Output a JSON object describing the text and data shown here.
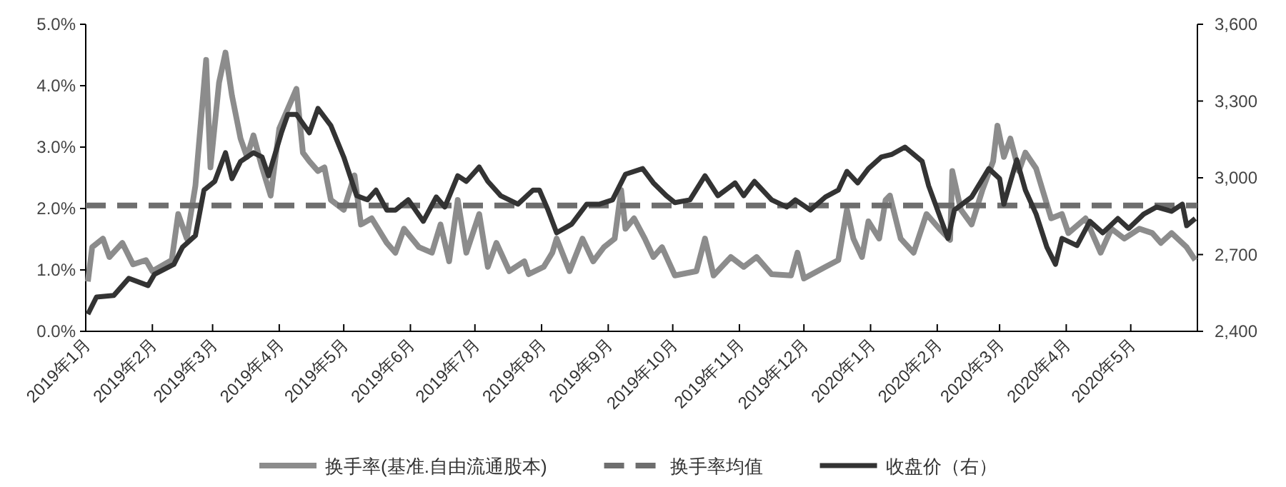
{
  "chart_data": {
    "type": "line",
    "xlim": [
      "2019-01-01",
      "2020-06-01"
    ],
    "xticks": [
      {
        "value": "2019-01",
        "label": "2019年1月"
      },
      {
        "value": "2019-02",
        "label": "2019年2月"
      },
      {
        "value": "2019-03",
        "label": "2019年3月"
      },
      {
        "value": "2019-04",
        "label": "2019年4月"
      },
      {
        "value": "2019-05",
        "label": "2019年5月"
      },
      {
        "value": "2019-06",
        "label": "2019年6月"
      },
      {
        "value": "2019-07",
        "label": "2019年7月"
      },
      {
        "value": "2019-08",
        "label": "2019年8月"
      },
      {
        "value": "2019-09",
        "label": "2019年9月"
      },
      {
        "value": "2019-10",
        "label": "2019年10月"
      },
      {
        "value": "2019-11",
        "label": "2019年11月"
      },
      {
        "value": "2019-12",
        "label": "2019年12月"
      },
      {
        "value": "2020-01",
        "label": "2020年1月"
      },
      {
        "value": "2020-02",
        "label": "2020年2月"
      },
      {
        "value": "2020-03",
        "label": "2020年3月"
      },
      {
        "value": "2020-04",
        "label": "2020年4月"
      },
      {
        "value": "2020-05",
        "label": "2020年5月"
      }
    ],
    "ylim": [
      0,
      5
    ],
    "yticks": [
      {
        "value": 0,
        "label": "0.0%"
      },
      {
        "value": 1,
        "label": "1.0%"
      },
      {
        "value": 2,
        "label": "2.0%"
      },
      {
        "value": 3,
        "label": "3.0%"
      },
      {
        "value": 4,
        "label": "4.0%"
      },
      {
        "value": 5,
        "label": "5.0%"
      }
    ],
    "y2lim": [
      2400,
      3600
    ],
    "y2ticks": [
      {
        "value": 2400,
        "label": "2,400"
      },
      {
        "value": 2700,
        "label": "2,700"
      },
      {
        "value": 3000,
        "label": "3,000"
      },
      {
        "value": 3300,
        "label": "3,300"
      },
      {
        "value": 3600,
        "label": "3,600"
      }
    ],
    "grid": false,
    "legend": "bottom",
    "series": [
      {
        "name": "换手率(基准.自由流通股本)",
        "color": "#8c8c8c",
        "line_style": "solid",
        "x": [
          "2019-01-02",
          "2019-01-04",
          "2019-01-09",
          "2019-01-12",
          "2019-01-18",
          "2019-01-23",
          "2019-01-29",
          "2019-02-01",
          "2019-02-10",
          "2019-02-13",
          "2019-02-17",
          "2019-02-21",
          "2019-02-26",
          "2019-02-28",
          "2019-03-04",
          "2019-03-07",
          "2019-03-10",
          "2019-03-14",
          "2019-03-17",
          "2019-03-20",
          "2019-03-24",
          "2019-03-28",
          "2019-04-01",
          "2019-04-09",
          "2019-04-12",
          "2019-04-15",
          "2019-04-19",
          "2019-04-22",
          "2019-04-25",
          "2019-05-01",
          "2019-05-06",
          "2019-05-09",
          "2019-05-14",
          "2019-05-21",
          "2019-05-25",
          "2019-05-29",
          "2019-06-05",
          "2019-06-11",
          "2019-06-15",
          "2019-06-19",
          "2019-06-23",
          "2019-06-27",
          "2019-07-03",
          "2019-07-07",
          "2019-07-11",
          "2019-07-17",
          "2019-07-24",
          "2019-07-26",
          "2019-08-02",
          "2019-08-06",
          "2019-08-08",
          "2019-08-14",
          "2019-08-20",
          "2019-08-25",
          "2019-08-30",
          "2019-09-04",
          "2019-09-07",
          "2019-09-09",
          "2019-09-13",
          "2019-09-18",
          "2019-09-22",
          "2019-09-26",
          "2019-10-02",
          "2019-10-12",
          "2019-10-16",
          "2019-10-20",
          "2019-10-28",
          "2019-11-03",
          "2019-11-09",
          "2019-11-16",
          "2019-11-25",
          "2019-11-28",
          "2019-12-01",
          "2019-12-11",
          "2019-12-17",
          "2019-12-21",
          "2019-12-24",
          "2019-12-28",
          "2019-12-31",
          "2020-01-05",
          "2020-01-08",
          "2020-01-10",
          "2020-01-15",
          "2020-01-21",
          "2020-01-27",
          "2020-02-02",
          "2020-02-07",
          "2020-02-08",
          "2020-02-12",
          "2020-02-17",
          "2020-02-22",
          "2020-02-27",
          "2020-02-29",
          "2020-03-03",
          "2020-03-06",
          "2020-03-10",
          "2020-03-13",
          "2020-03-18",
          "2020-03-21",
          "2020-03-25",
          "2020-03-30",
          "2020-04-02",
          "2020-04-10",
          "2020-04-17",
          "2020-04-22",
          "2020-04-28",
          "2020-05-05",
          "2020-05-11",
          "2020-05-15",
          "2020-05-20",
          "2020-05-27",
          "2020-05-31"
        ],
        "values": [
          0.81,
          1.37,
          1.51,
          1.21,
          1.44,
          1.09,
          1.16,
          0.98,
          1.16,
          1.91,
          1.51,
          2.37,
          4.42,
          2.67,
          4.05,
          4.54,
          3.84,
          3.14,
          2.84,
          3.19,
          2.67,
          2.21,
          3.3,
          3.95,
          2.91,
          2.77,
          2.61,
          2.67,
          2.14,
          1.98,
          2.54,
          1.74,
          1.84,
          1.44,
          1.28,
          1.67,
          1.37,
          1.28,
          1.74,
          1.14,
          2.14,
          1.28,
          1.91,
          1.05,
          1.44,
          0.98,
          1.14,
          0.93,
          1.05,
          1.28,
          1.51,
          0.98,
          1.51,
          1.14,
          1.37,
          1.51,
          2.3,
          1.67,
          1.84,
          1.51,
          1.21,
          1.37,
          0.91,
          0.98,
          1.51,
          0.91,
          1.21,
          1.05,
          1.21,
          0.93,
          0.91,
          1.28,
          0.86,
          1.05,
          1.16,
          1.98,
          1.51,
          1.21,
          1.79,
          1.51,
          2.14,
          2.21,
          1.51,
          1.28,
          1.91,
          1.67,
          1.49,
          2.61,
          1.98,
          1.74,
          2.3,
          2.77,
          3.35,
          2.84,
          3.14,
          2.61,
          2.91,
          2.65,
          2.3,
          1.84,
          1.91,
          1.6,
          1.84,
          1.28,
          1.67,
          1.51,
          1.67,
          1.6,
          1.44,
          1.6,
          1.37,
          1.16
        ]
      },
      {
        "name": "换手率均值",
        "color": "#6e6e6e",
        "line_style": "dashed",
        "x": [
          "2019-01-01",
          "2020-06-01"
        ],
        "values": [
          2.05,
          2.05
        ]
      },
      {
        "name": "收盘价（右）",
        "color": "#333333",
        "line_style": "solid",
        "axis": "y2",
        "x": [
          "2019-01-02",
          "2019-01-06",
          "2019-01-14",
          "2019-01-21",
          "2019-01-30",
          "2019-02-02",
          "2019-02-11",
          "2019-02-15",
          "2019-02-21",
          "2019-02-25",
          "2019-03-02",
          "2019-03-07",
          "2019-03-10",
          "2019-03-14",
          "2019-03-20",
          "2019-03-24",
          "2019-03-27",
          "2019-04-02",
          "2019-04-05",
          "2019-04-09",
          "2019-04-15",
          "2019-04-19",
          "2019-04-25",
          "2019-05-01",
          "2019-05-07",
          "2019-05-12",
          "2019-05-16",
          "2019-05-21",
          "2019-05-25",
          "2019-05-31",
          "2019-06-07",
          "2019-06-13",
          "2019-06-17",
          "2019-06-23",
          "2019-06-27",
          "2019-07-03",
          "2019-07-07",
          "2019-07-13",
          "2019-07-21",
          "2019-07-28",
          "2019-07-31",
          "2019-08-04",
          "2019-08-08",
          "2019-08-15",
          "2019-08-22",
          "2019-08-28",
          "2019-09-03",
          "2019-09-09",
          "2019-09-17",
          "2019-09-22",
          "2019-09-28",
          "2019-10-02",
          "2019-10-09",
          "2019-10-16",
          "2019-10-22",
          "2019-10-30",
          "2019-11-03",
          "2019-11-08",
          "2019-11-16",
          "2019-11-23",
          "2019-11-27",
          "2019-12-04",
          "2019-12-11",
          "2019-12-17",
          "2019-12-21",
          "2019-12-26",
          "2019-12-31",
          "2020-01-06",
          "2020-01-11",
          "2020-01-17",
          "2020-01-25",
          "2020-01-28",
          "2020-02-06",
          "2020-02-09",
          "2020-02-17",
          "2020-02-25",
          "2020-03-01",
          "2020-03-03",
          "2020-03-09",
          "2020-03-13",
          "2020-03-18",
          "2020-03-23",
          "2020-03-27",
          "2020-03-30",
          "2020-04-06",
          "2020-04-12",
          "2020-04-18",
          "2020-04-25",
          "2020-04-30",
          "2020-05-07",
          "2020-05-13",
          "2020-05-20",
          "2020-05-25",
          "2020-05-27",
          "2020-05-31"
        ],
        "values": [
          2467,
          2534,
          2540,
          2607,
          2579,
          2623,
          2662,
          2729,
          2774,
          2952,
          2986,
          3098,
          2997,
          3064,
          3098,
          3081,
          3008,
          3176,
          3248,
          3248,
          3176,
          3271,
          3204,
          3081,
          2930,
          2914,
          2952,
          2874,
          2874,
          2914,
          2830,
          2925,
          2886,
          3008,
          2986,
          3042,
          2986,
          2930,
          2897,
          2952,
          2952,
          2874,
          2785,
          2819,
          2897,
          2897,
          2914,
          3014,
          3036,
          2980,
          2930,
          2903,
          2914,
          3008,
          2930,
          2980,
          2930,
          2986,
          2914,
          2886,
          2914,
          2874,
          2925,
          2952,
          3025,
          2980,
          3036,
          3081,
          3092,
          3120,
          3064,
          2969,
          2763,
          2874,
          2925,
          3036,
          2997,
          2897,
          3070,
          2952,
          2858,
          2729,
          2662,
          2763,
          2735,
          2830,
          2785,
          2841,
          2802,
          2858,
          2886,
          2869,
          2897,
          2813,
          2841
        ]
      }
    ]
  }
}
